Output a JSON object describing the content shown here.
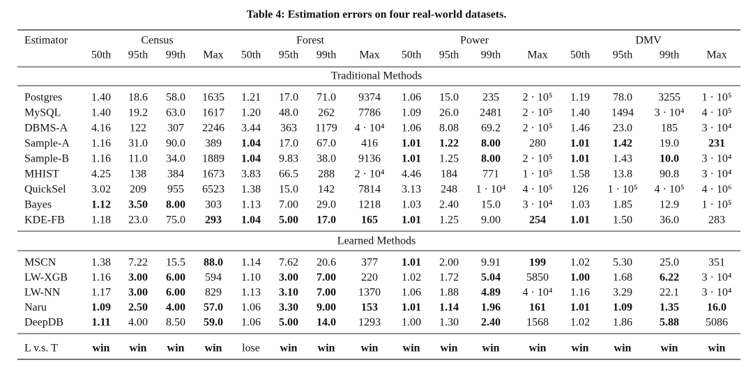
{
  "title": "Table 4: Estimation errors on four real-world datasets.",
  "table": {
    "corner": "Estimator",
    "groups": [
      "Census",
      "Forest",
      "Power",
      "DMV"
    ],
    "columns": [
      "50th",
      "95th",
      "99th",
      "Max",
      "50th",
      "95th",
      "99th",
      "Max",
      "50th",
      "95th",
      "99th",
      "Max",
      "50th",
      "95th",
      "99th",
      "Max"
    ],
    "sections": [
      {
        "title": "Traditional Methods",
        "rows": [
          {
            "cells": [
              "Postgres",
              "1.40",
              "18.6",
              "58.0",
              "1635",
              "1.21",
              "17.0",
              "71.0",
              "9374",
              "1.06",
              "15.0",
              "235",
              "2 · 10⁵",
              "1.19",
              "78.0",
              "3255",
              "1 · 10⁵"
            ],
            "bold": []
          },
          {
            "cells": [
              "MySQL",
              "1.40",
              "19.2",
              "63.0",
              "1617",
              "1.20",
              "48.0",
              "262",
              "7786",
              "1.09",
              "26.0",
              "2481",
              "2 · 10⁵",
              "1.40",
              "1494",
              "3 · 10⁴",
              "4 · 10⁵"
            ],
            "bold": []
          },
          {
            "cells": [
              "DBMS-A",
              "4.16",
              "122",
              "307",
              "2246",
              "3.44",
              "363",
              "1179",
              "4 · 10⁴",
              "1.06",
              "8.08",
              "69.2",
              "2 · 10⁵",
              "1.46",
              "23.0",
              "185",
              "3 · 10⁴"
            ],
            "bold": []
          },
          {
            "cells": [
              "Sample-A",
              "1.16",
              "31.0",
              "90.0",
              "389",
              "1.04",
              "17.0",
              "67.0",
              "416",
              "1.01",
              "1.22",
              "8.00",
              "280",
              "1.01",
              "1.42",
              "19.0",
              "231"
            ],
            "bold": [
              5,
              9,
              10,
              11,
              13,
              14,
              16
            ]
          },
          {
            "cells": [
              "Sample-B",
              "1.16",
              "11.0",
              "34.0",
              "1889",
              "1.04",
              "9.83",
              "38.0",
              "9136",
              "1.01",
              "1.25",
              "8.00",
              "2 · 10⁵",
              "1.01",
              "1.43",
              "10.0",
              "3 · 10⁴"
            ],
            "bold": [
              5,
              9,
              11,
              13,
              15
            ]
          },
          {
            "cells": [
              "MHIST",
              "4.25",
              "138",
              "384",
              "1673",
              "3.83",
              "66.5",
              "288",
              "2 · 10⁴",
              "4.46",
              "184",
              "771",
              "1 · 10⁵",
              "1.58",
              "13.8",
              "90.8",
              "3 · 10⁴"
            ],
            "bold": []
          },
          {
            "cells": [
              "QuickSel",
              "3.02",
              "209",
              "955",
              "6523",
              "1.38",
              "15.0",
              "142",
              "7814",
              "3.13",
              "248",
              "1 · 10⁴",
              "4 · 10⁵",
              "126",
              "1 · 10⁵",
              "4 · 10⁵",
              "4 · 10⁶"
            ],
            "bold": []
          },
          {
            "cells": [
              "Bayes",
              "1.12",
              "3.50",
              "8.00",
              "303",
              "1.13",
              "7.00",
              "29.0",
              "1218",
              "1.03",
              "2.40",
              "15.0",
              "3 · 10⁴",
              "1.03",
              "1.85",
              "12.9",
              "1 · 10⁵"
            ],
            "bold": [
              1,
              2,
              3
            ]
          },
          {
            "cells": [
              "KDE-FB",
              "1.18",
              "23.0",
              "75.0",
              "293",
              "1.04",
              "5.00",
              "17.0",
              "165",
              "1.01",
              "1.25",
              "9.00",
              "254",
              "1.01",
              "1.50",
              "36.0",
              "283"
            ],
            "bold": [
              4,
              5,
              6,
              7,
              8,
              9,
              12,
              13
            ]
          }
        ]
      },
      {
        "title": "Learned Methods",
        "rows": [
          {
            "cells": [
              "MSCN",
              "1.38",
              "7.22",
              "15.5",
              "88.0",
              "1.14",
              "7.62",
              "20.6",
              "377",
              "1.01",
              "2.00",
              "9.91",
              "199",
              "1.02",
              "5.30",
              "25.0",
              "351"
            ],
            "bold": [
              4,
              9,
              12
            ]
          },
          {
            "cells": [
              "LW-XGB",
              "1.16",
              "3.00",
              "6.00",
              "594",
              "1.10",
              "3.00",
              "7.00",
              "220",
              "1.02",
              "1.72",
              "5.04",
              "5850",
              "1.00",
              "1.68",
              "6.22",
              "3 · 10⁴"
            ],
            "bold": [
              2,
              3,
              6,
              7,
              11,
              13,
              15
            ]
          },
          {
            "cells": [
              "LW-NN",
              "1.17",
              "3.00",
              "6.00",
              "829",
              "1.13",
              "3.10",
              "7.00",
              "1370",
              "1.06",
              "1.88",
              "4.89",
              "4 · 10⁴",
              "1.16",
              "3.29",
              "22.1",
              "3 · 10⁴"
            ],
            "bold": [
              2,
              3,
              6,
              7,
              11
            ]
          },
          {
            "cells": [
              "Naru",
              "1.09",
              "2.50",
              "4.00",
              "57.0",
              "1.06",
              "3.30",
              "9.00",
              "153",
              "1.01",
              "1.14",
              "1.96",
              "161",
              "1.01",
              "1.09",
              "1.35",
              "16.0"
            ],
            "bold": [
              1,
              2,
              3,
              4,
              6,
              7,
              8,
              9,
              10,
              11,
              12,
              13,
              14,
              15,
              16
            ]
          },
          {
            "cells": [
              "DeepDB",
              "1.11",
              "4.00",
              "8.50",
              "59.0",
              "1.06",
              "5.00",
              "14.0",
              "1293",
              "1.00",
              "1.30",
              "2.40",
              "1568",
              "1.02",
              "1.86",
              "5.88",
              "5086"
            ],
            "bold": [
              1,
              4,
              6,
              7,
              11,
              15
            ]
          }
        ]
      }
    ],
    "summary": {
      "cells": [
        "L v.s. T",
        "win",
        "win",
        "win",
        "win",
        "lose",
        "win",
        "win",
        "win",
        "win",
        "win",
        "win",
        "win",
        "win",
        "win",
        "win",
        "win"
      ],
      "bold": [
        1,
        2,
        3,
        4,
        6,
        7,
        8,
        9,
        10,
        11,
        12,
        13,
        14,
        15,
        16
      ]
    }
  }
}
